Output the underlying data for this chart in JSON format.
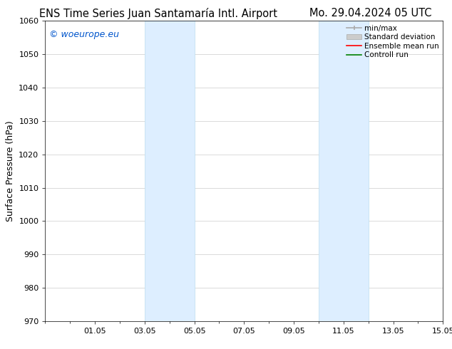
{
  "title_left": "ENS Time Series Juan Santamaría Intl. Airport",
  "title_right": "Mo. 29.04.2024 05 UTC",
  "ylabel": "Surface Pressure (hPa)",
  "xtick_labels": [
    "01.05",
    "03.05",
    "05.05",
    "07.05",
    "09.05",
    "11.05",
    "13.05",
    "15.05"
  ],
  "xtick_positions": [
    2,
    4,
    6,
    8,
    10,
    12,
    14,
    16
  ],
  "xlim": [
    0,
    16
  ],
  "ylim": [
    970,
    1060
  ],
  "ytick_step": 10,
  "watermark": "© woeurope.eu",
  "watermark_color": "#0055cc",
  "shaded_bands": [
    {
      "x_start": 4.0,
      "x_end": 6.0
    },
    {
      "x_start": 11.0,
      "x_end": 13.0
    }
  ],
  "shaded_color": "#ddeeff",
  "shaded_edge_color": "#bbddee",
  "legend_items": [
    {
      "label": "min/max",
      "color": "#aaaaaa",
      "lw": 1.5,
      "ls": "-",
      "type": "line_with_caps"
    },
    {
      "label": "Standard deviation",
      "color": "#cccccc",
      "lw": 8,
      "ls": "-",
      "type": "patch"
    },
    {
      "label": "Ensemble mean run",
      "color": "red",
      "lw": 1.5,
      "ls": "-",
      "type": "line"
    },
    {
      "label": "Controll run",
      "color": "green",
      "lw": 1.5,
      "ls": "-",
      "type": "line"
    }
  ],
  "background_color": "#ffffff",
  "grid_color": "#cccccc",
  "title_fontsize": 10.5,
  "label_fontsize": 9,
  "tick_fontsize": 8,
  "legend_fontsize": 7.5,
  "watermark_fontsize": 9
}
